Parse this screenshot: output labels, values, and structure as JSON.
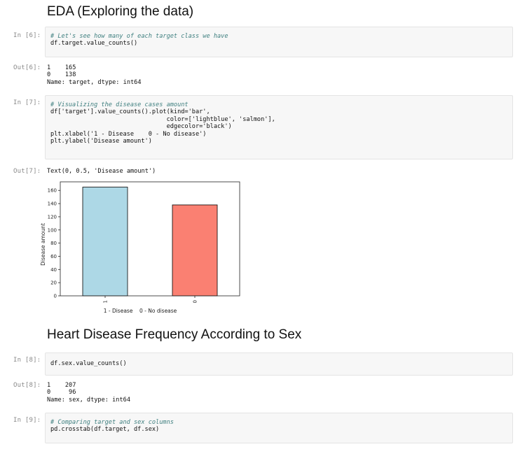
{
  "notebook": {
    "heading_eda": "EDA (Exploring the data)",
    "heading_sex": "Heart Disease Frequency According to Sex",
    "cells": {
      "in6_prompt": "In [6]:",
      "in6_comment": "# Let's see how many of each target class we have",
      "in6_code": "df.target.value_counts()",
      "out6_prompt": "Out[6]:",
      "out6_line1": "1    165",
      "out6_line2": "0    138",
      "out6_line3": "Name: target, dtype: int64",
      "in7_prompt": "In [7]:",
      "in7_comment": "# Visualizing the disease cases amount",
      "in7_line1": "df['target'].value_counts().plot(kind='bar',",
      "in7_line2": "                                color=['lightblue', 'salmon'],",
      "in7_line3": "                                edgecolor='black')",
      "in7_line4": "plt.xlabel('1 - Disease    0 - No disease')",
      "in7_line5": "plt.ylabel('Disease amount')",
      "out7_prompt": "Out[7]:",
      "out7_text": "Text(0, 0.5, 'Disease amount')",
      "in8_prompt": "In [8]:",
      "in8_code": "df.sex.value_counts()",
      "out8_prompt": "Out[8]:",
      "out8_line1": "1    207",
      "out8_line2": "0     96",
      "out8_line3": "Name: sex, dtype: int64",
      "in9_prompt": "In [9]:",
      "in9_comment": "# Comparing target and sex columns",
      "in9_code": "pd.crosstab(df.target, df.sex)"
    }
  },
  "chart_data": {
    "type": "bar",
    "categories": [
      "1",
      "0"
    ],
    "values": [
      165,
      138
    ],
    "colors": [
      "#add8e6",
      "#fa8072"
    ],
    "edgecolor": "#000000",
    "xlabel": "1 - Disease    0 - No disease",
    "ylabel": "Disease amount",
    "ylim": [
      0,
      173
    ],
    "yticks": [
      0,
      20,
      40,
      60,
      80,
      100,
      120,
      140,
      160
    ],
    "grid": false
  }
}
